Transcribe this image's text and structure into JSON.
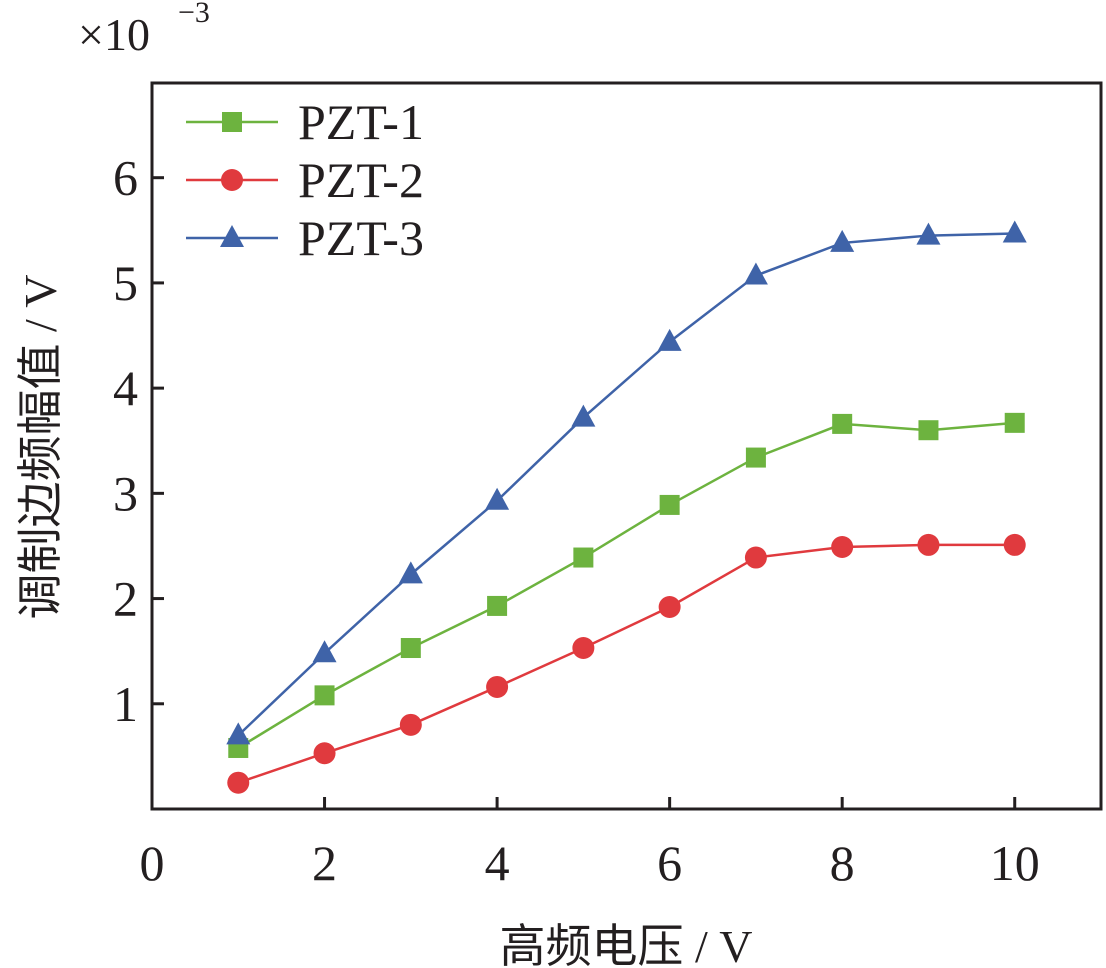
{
  "chart_data": {
    "type": "line",
    "title": "",
    "xlabel": "高频电压 / V",
    "ylabel": "调制边频幅值 / V",
    "y_multiplier": "×10",
    "y_multiplier_exp": "−3",
    "xlim": [
      0,
      11
    ],
    "ylim": [
      0,
      6.9
    ],
    "x_ticks": [
      0,
      2,
      4,
      6,
      8,
      10
    ],
    "y_ticks": [
      1,
      2,
      3,
      4,
      5,
      6
    ],
    "x_tick_labels": [
      "0",
      "2",
      "4",
      "6",
      "8",
      "10"
    ],
    "y_tick_labels": [
      "1",
      "2",
      "3",
      "4",
      "5",
      "6"
    ],
    "legend_position": "top-left",
    "grid": false,
    "series": [
      {
        "name": "PZT-1",
        "marker": "square",
        "color": "#6db33f",
        "x": [
          1,
          2,
          3,
          4,
          5,
          6,
          7,
          8,
          9,
          10
        ],
        "values": [
          0.58,
          1.08,
          1.53,
          1.93,
          2.39,
          2.89,
          3.34,
          3.66,
          3.6,
          3.67
        ]
      },
      {
        "name": "PZT-2",
        "marker": "circle",
        "color": "#e03a3e",
        "x": [
          1,
          2,
          3,
          4,
          5,
          6,
          7,
          8,
          9,
          10
        ],
        "values": [
          0.25,
          0.53,
          0.8,
          1.16,
          1.53,
          1.92,
          2.39,
          2.49,
          2.51,
          2.51
        ]
      },
      {
        "name": "PZT-3",
        "marker": "triangle",
        "color": "#3f63a8",
        "x": [
          1,
          2,
          3,
          4,
          5,
          6,
          7,
          8,
          9,
          10
        ],
        "values": [
          0.7,
          1.48,
          2.23,
          2.93,
          3.72,
          4.44,
          5.07,
          5.38,
          5.45,
          5.47
        ]
      }
    ]
  }
}
